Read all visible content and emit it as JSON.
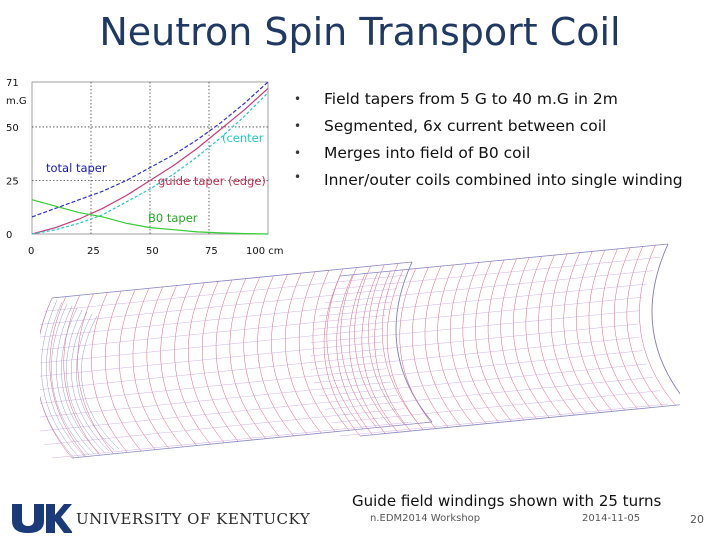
{
  "slide": {
    "title": "Neutron Spin Transport Coil",
    "bullets": [
      "Field tapers from 5 G to 40 m.G in 2m",
      "Segmented, 6x current between coil",
      "Merges into field of B0 coil",
      "Inner/outer coils combined into single winding"
    ],
    "caption": "Guide field windings shown with 25 turns",
    "footer": {
      "workshop": "n.EDM2014 Workshop",
      "date": "2014-11-05",
      "page": "20"
    },
    "logo": {
      "mark": "UK",
      "name": "UNIVERSITY OF KENTUCKY"
    }
  },
  "chart_data": {
    "type": "line",
    "ylabel": "m.G",
    "xunit": "100 cm",
    "xlim": [
      0,
      100
    ],
    "ylim": [
      0,
      71
    ],
    "x_ticks": [
      0,
      25,
      50,
      75
    ],
    "y_ticks": [
      0,
      25,
      50,
      71
    ],
    "grid": true,
    "annotations": [
      {
        "text": "total taper",
        "color": "#1a1aaa"
      },
      {
        "text": "(center",
        "color": "#1ec8c8"
      },
      {
        "text": "guide taper (edge)",
        "color": "#c03050"
      },
      {
        "text": "B0 taper",
        "color": "#22aa22"
      }
    ],
    "series": [
      {
        "name": "total taper",
        "color": "#3030c8",
        "x": [
          0,
          10,
          20,
          30,
          40,
          50,
          60,
          70,
          80,
          90,
          100
        ],
        "y": [
          8,
          12,
          16,
          20,
          25,
          31,
          37,
          44,
          52,
          61,
          71
        ]
      },
      {
        "name": "guide taper (edge)",
        "color": "#c83c78",
        "x": [
          0,
          10,
          20,
          30,
          40,
          50,
          60,
          70,
          80,
          90,
          100
        ],
        "y": [
          0,
          3,
          7,
          12,
          18,
          25,
          32,
          40,
          49,
          58,
          68
        ]
      },
      {
        "name": "center",
        "color": "#22c8c8",
        "x": [
          0,
          10,
          20,
          30,
          40,
          50,
          60,
          70,
          80,
          90,
          100
        ],
        "y": [
          0,
          2,
          5,
          9,
          15,
          21,
          28,
          36,
          45,
          55,
          66
        ]
      },
      {
        "name": "B0 taper",
        "color": "#33cc33",
        "x": [
          0,
          10,
          20,
          30,
          40,
          50,
          60,
          70,
          80,
          90,
          100
        ],
        "y": [
          16,
          13,
          10,
          8,
          5,
          3,
          2,
          1,
          0.5,
          0.2,
          0
        ]
      }
    ]
  }
}
